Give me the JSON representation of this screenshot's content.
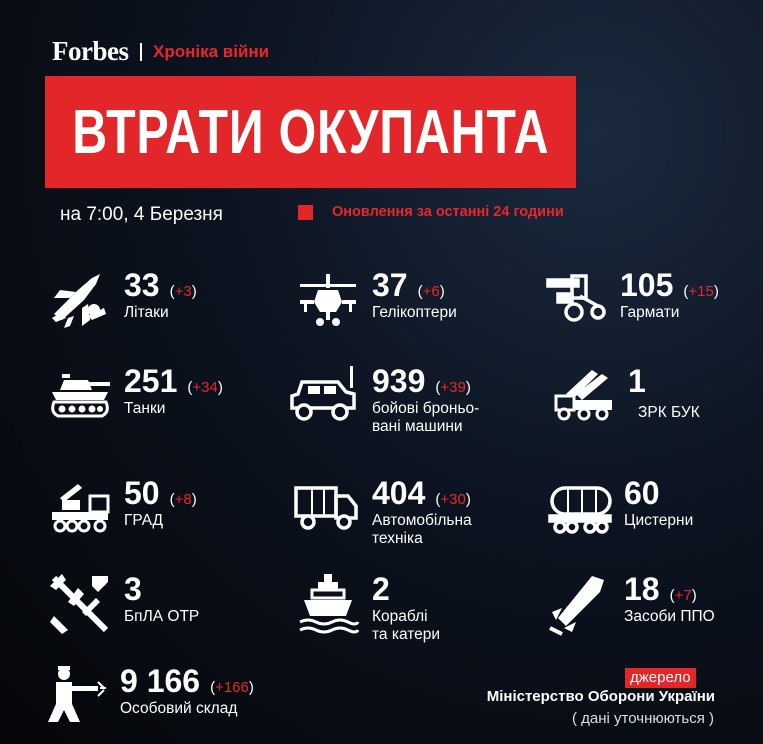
{
  "header": {
    "brand": "Forbes",
    "section": "Хроніка війни"
  },
  "title": "ВТРАТИ ОКУПАНТА",
  "date": "на 7:00, 4 Березня",
  "legend": "Оновлення за останні 24 години",
  "items": [
    {
      "value": "33",
      "delta": "+3",
      "label": "Літаки",
      "icon": "fighter-jet-icon"
    },
    {
      "value": "37",
      "delta": "+6",
      "label": "Гелікоптери",
      "icon": "helicopter-icon"
    },
    {
      "value": "105",
      "delta": "+15",
      "label": "Гармати",
      "icon": "artillery-gun-icon"
    },
    {
      "value": "251",
      "delta": "+34",
      "label": "Танки",
      "icon": "tank-icon"
    },
    {
      "value": "939",
      "delta": "+39",
      "label": "бойові броньо-\nвані машини",
      "icon": "armored-vehicle-icon"
    },
    {
      "value": "1",
      "delta": "",
      "label": "ЗРК БУК",
      "icon": "missile-launcher-truck-icon"
    },
    {
      "value": "50",
      "delta": "+8",
      "label": "ГРАД",
      "icon": "rocket-launcher-icon"
    },
    {
      "value": "404",
      "delta": "+30",
      "label": "Автомобільна\nтехніка",
      "icon": "truck-icon"
    },
    {
      "value": "60",
      "delta": "",
      "label": "Цистерни",
      "icon": "tanker-icon"
    },
    {
      "value": "3",
      "delta": "",
      "label": "БпЛА ОТР",
      "icon": "drone-missile-icon"
    },
    {
      "value": "2",
      "delta": "",
      "label": "Кораблі\nта катери",
      "icon": "ship-icon"
    },
    {
      "value": "18",
      "delta": "+7",
      "label": "Засоби ППО",
      "icon": "air-defense-missile-icon"
    },
    {
      "value": "9 166",
      "delta": "+166",
      "label": "Особовий склад",
      "icon": "soldier-icon"
    }
  ],
  "source": {
    "tag": "джерело",
    "name": "Міністерство Оборони України",
    "note": "( дані уточнюються )"
  }
}
